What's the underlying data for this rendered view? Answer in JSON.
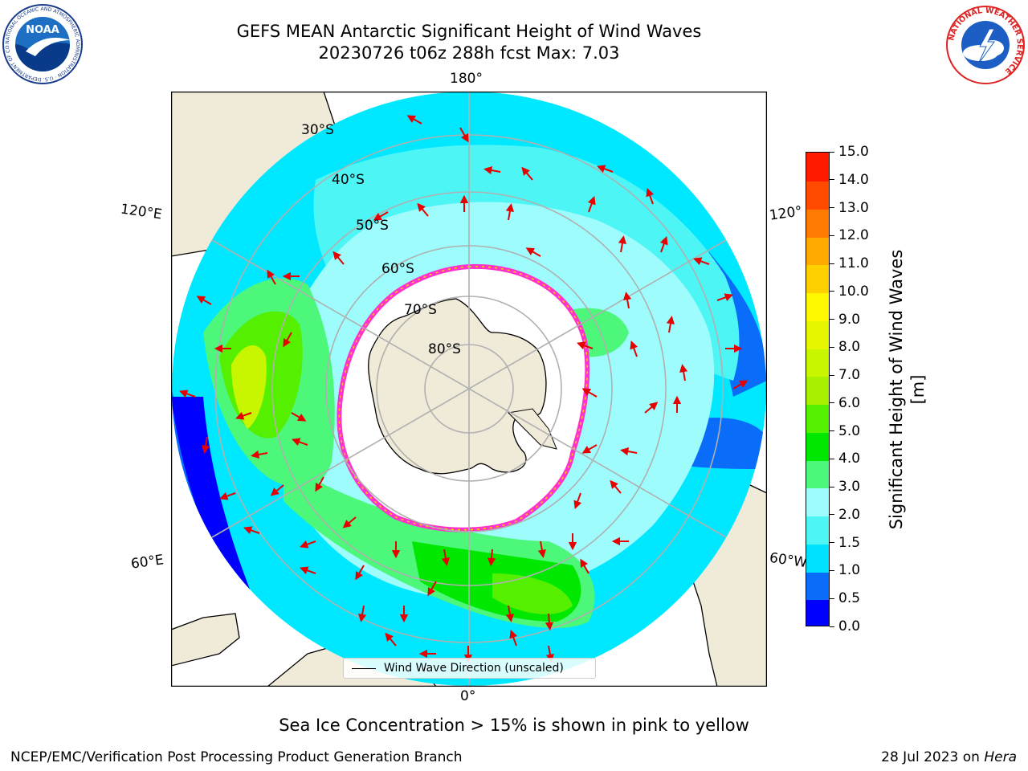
{
  "header": {
    "title_line1": "GEFS MEAN Antarctic Significant Height of Wind Waves",
    "title_line2": "20230726 t06z 288h fcst   Max: 7.03"
  },
  "logos": {
    "noaa": {
      "text": "NOAA",
      "ring_text": "NATIONAL OCEANIC AND ATMOSPHERIC ADMINISTRATION · U.S. DEPARTMENT OF COMMERCE"
    },
    "nws": {
      "ring_text": "NATIONAL WEATHER SERVICE"
    }
  },
  "map": {
    "projection": "south-polar-stereographic",
    "longitude_labels": {
      "top": "180°",
      "bottom": "0°",
      "left_upper": "120°E",
      "left_lower": "60°E",
      "right_upper": "120°",
      "right_lower": "60°W"
    },
    "latitude_labels": [
      "30°S",
      "40°S",
      "50°S",
      "60°S",
      "70°S",
      "80°S"
    ],
    "legend_label": "Wind Wave Direction (unscaled)",
    "colors": {
      "land": "#efebd8",
      "sea_ice": "#ffffff",
      "ice_edge": "#ff33cc",
      "arrow": "#e60000",
      "grid": "#b0b0b0"
    }
  },
  "colorbar": {
    "label": "Significant Height of Wind Waves [m]",
    "tick_labels": [
      "0.0",
      "0.5",
      "1.0",
      "1.5",
      "2.0",
      "3.0",
      "4.0",
      "5.0",
      "6.0",
      "7.0",
      "8.0",
      "9.0",
      "10.0",
      "11.0",
      "12.0",
      "13.0",
      "14.0",
      "15.0"
    ],
    "colors": [
      "#0000ff",
      "#0a6dfa",
      "#00e0ff",
      "#4ef5f5",
      "#9efcfc",
      "#4cf77a",
      "#00e800",
      "#55f000",
      "#a6f000",
      "#c8f500",
      "#e6f500",
      "#fff800",
      "#ffd000",
      "#ffaa00",
      "#ff7a00",
      "#ff4a00",
      "#ff1a00"
    ]
  },
  "note": "Sea Ice Concentration > 15% is shown in pink to yellow",
  "footer": {
    "left": "NCEP/EMC/Verification Post Processing Product Generation Branch",
    "right_prefix": "28 Jul 2023 on ",
    "right_host": "Hera"
  }
}
